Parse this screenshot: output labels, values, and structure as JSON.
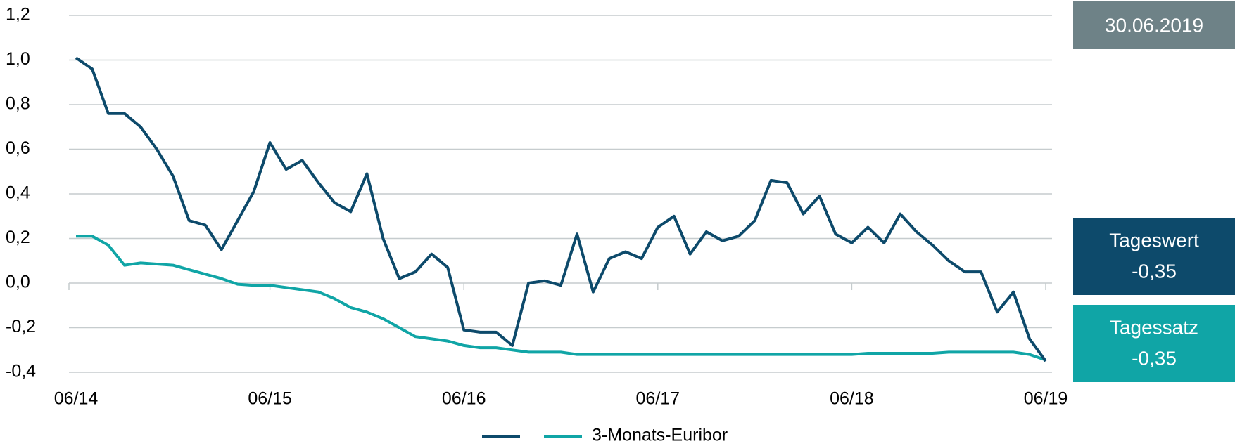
{
  "chart_data": {
    "type": "line",
    "categories": [
      "06/14",
      null,
      null,
      null,
      null,
      null,
      null,
      null,
      null,
      null,
      null,
      null,
      "06/15",
      null,
      null,
      null,
      null,
      null,
      null,
      null,
      null,
      null,
      null,
      null,
      "06/16",
      null,
      null,
      null,
      null,
      null,
      null,
      null,
      null,
      null,
      null,
      null,
      "06/17",
      null,
      null,
      null,
      null,
      null,
      null,
      null,
      null,
      null,
      null,
      null,
      "06/18",
      null,
      null,
      null,
      null,
      null,
      null,
      null,
      null,
      null,
      null,
      null,
      "06/19"
    ],
    "series": [
      {
        "name": null,
        "color": "#0d4a6b",
        "values": [
          1.01,
          0.96,
          0.76,
          0.76,
          0.7,
          0.6,
          0.48,
          0.28,
          0.26,
          0.15,
          0.28,
          0.41,
          0.63,
          0.51,
          0.55,
          0.45,
          0.36,
          0.32,
          0.49,
          0.2,
          0.02,
          0.05,
          0.13,
          0.07,
          -0.21,
          -0.22,
          -0.22,
          -0.28,
          0.0,
          0.01,
          -0.01,
          0.22,
          -0.04,
          0.11,
          0.14,
          0.11,
          0.25,
          0.3,
          0.13,
          0.23,
          0.19,
          0.21,
          0.28,
          0.46,
          0.45,
          0.31,
          0.39,
          0.22,
          0.18,
          0.25,
          0.18,
          0.31,
          0.23,
          0.17,
          0.1,
          0.05,
          0.05,
          -0.13,
          -0.04,
          -0.25,
          -0.35
        ]
      },
      {
        "name": "3-Monats-Euribor",
        "color": "#10a5a6",
        "values": [
          0.21,
          0.21,
          0.17,
          0.08,
          0.09,
          0.085,
          0.08,
          0.06,
          0.04,
          0.02,
          -0.005,
          -0.01,
          -0.01,
          -0.02,
          -0.03,
          -0.04,
          -0.07,
          -0.11,
          -0.13,
          -0.16,
          -0.2,
          -0.24,
          -0.25,
          -0.26,
          -0.28,
          -0.29,
          -0.29,
          -0.3,
          -0.31,
          -0.31,
          -0.31,
          -0.32,
          -0.32,
          -0.32,
          -0.32,
          -0.32,
          -0.32,
          -0.32,
          -0.32,
          -0.32,
          -0.32,
          -0.32,
          -0.32,
          -0.32,
          -0.32,
          -0.32,
          -0.32,
          -0.32,
          -0.32,
          -0.315,
          -0.315,
          -0.315,
          -0.315,
          -0.315,
          -0.31,
          -0.31,
          -0.31,
          -0.31,
          -0.31,
          -0.32,
          -0.345
        ]
      }
    ],
    "ylim": [
      -0.4,
      1.2
    ],
    "yticks": [
      {
        "value": -0.4,
        "label": "-0,4"
      },
      {
        "value": -0.2,
        "label": "-0,2"
      },
      {
        "value": 0,
        "label": "0,0"
      },
      {
        "value": 0.2,
        "label": "0,2"
      },
      {
        "value": 0.4,
        "label": "0,4"
      },
      {
        "value": 0.6,
        "label": "0,6"
      },
      {
        "value": 0.8,
        "label": "0,8"
      },
      {
        "value": 1.0,
        "label": "1,0"
      },
      {
        "value": 1.2,
        "label": "1,2"
      }
    ],
    "grid": true
  },
  "panel": {
    "date": "30.06.2019",
    "boxes": [
      {
        "label": "Tageswert",
        "value": "-0,35",
        "color": "#0d4a6b"
      },
      {
        "label": "Tagessatz",
        "value": "-0,35",
        "color": "#10a5a6"
      }
    ],
    "date_color": "#6e8287"
  }
}
